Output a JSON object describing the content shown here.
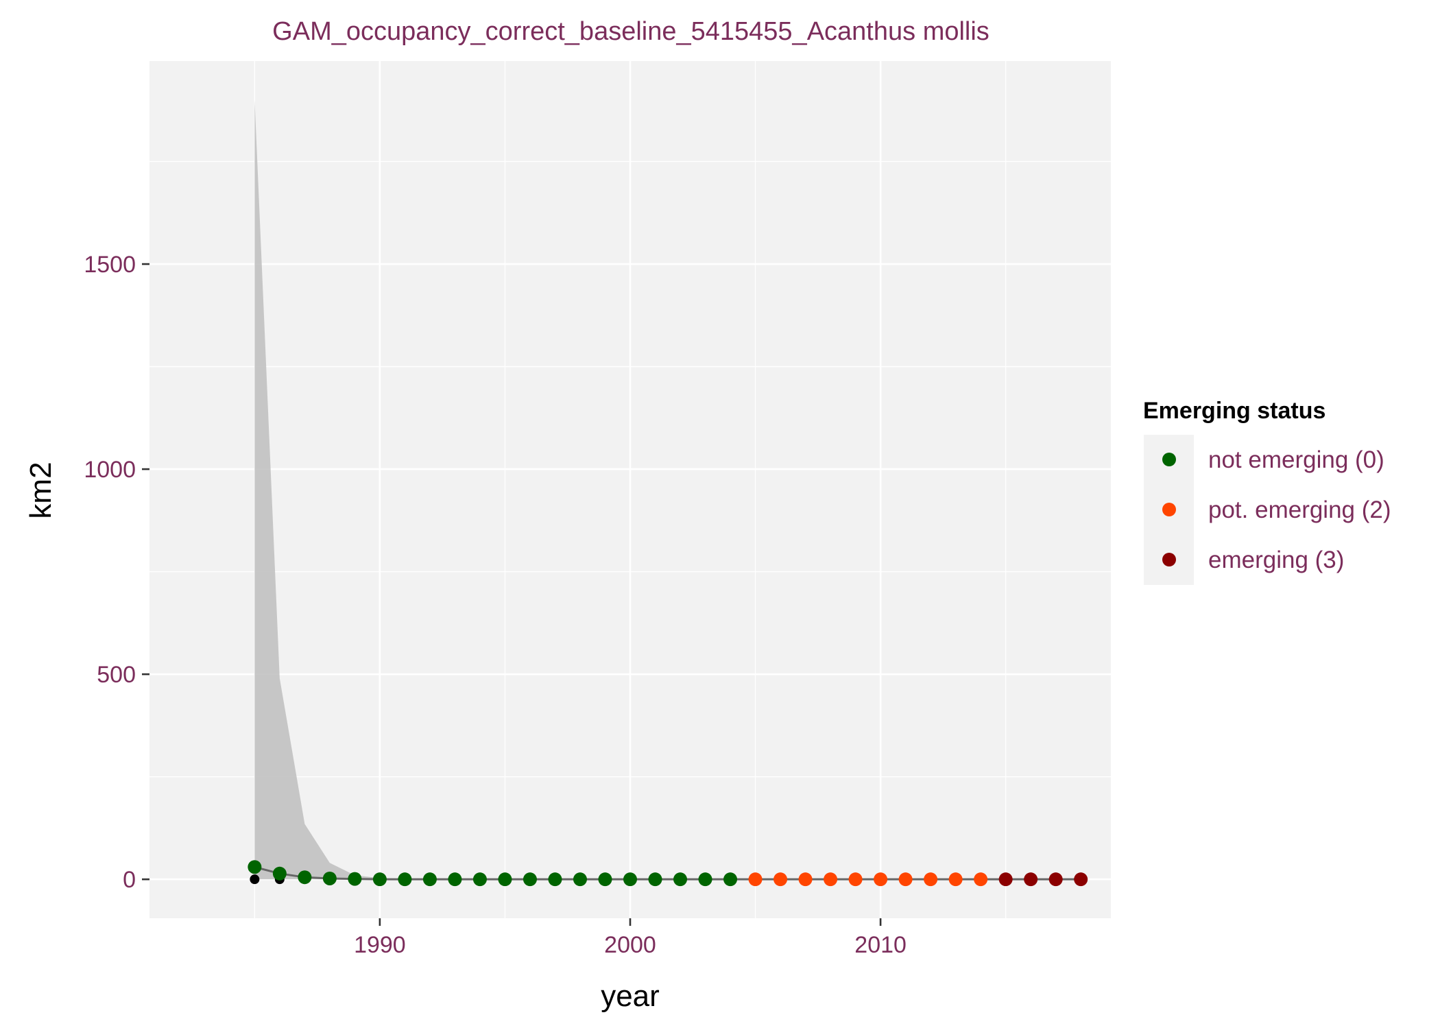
{
  "chart_data": {
    "type": "scatter",
    "title": "GAM_occupancy_correct_baseline_5415455_Acanthus mollis",
    "xlabel": "year",
    "ylabel": "km2",
    "xlim": [
      1980.8,
      2019.2
    ],
    "ylim": [
      -95,
      1995
    ],
    "x_ticks": [
      1990,
      2000,
      2010
    ],
    "x_minor": [
      1985,
      1995,
      2005,
      2015
    ],
    "y_ticks": [
      0,
      500,
      1000,
      1500
    ],
    "y_minor": [
      250,
      750,
      1250,
      1750
    ],
    "grid": true,
    "legend_position": "right",
    "legend": {
      "title": "Emerging status",
      "entries": [
        {
          "label": "not emerging (0)",
          "color": "#006400"
        },
        {
          "label": "pot. emerging (2)",
          "color": "#FF4500"
        },
        {
          "label": "emerging (3)",
          "color": "#8B0000"
        }
      ]
    },
    "observed": [
      {
        "year": 1985,
        "value": 0
      },
      {
        "year": 1986,
        "value": 0
      }
    ],
    "ribbon": {
      "x": [
        1985,
        1986,
        1987,
        1988,
        1989,
        1990,
        1991,
        1992,
        1993,
        1994,
        1995,
        1996,
        1997,
        1998,
        1999,
        2000,
        2001,
        2002,
        2003,
        2004,
        2005,
        2006,
        2007,
        2008,
        2009,
        2010,
        2011,
        2012,
        2013,
        2014,
        2015,
        2016,
        2017,
        2018
      ],
      "upper": [
        1900,
        490,
        135,
        40,
        10,
        3,
        1,
        0.5,
        0.3,
        0.2,
        0.1,
        0.1,
        0.1,
        0.1,
        0.1,
        0.1,
        0.1,
        0.1,
        0.1,
        0.1,
        0.1,
        0.1,
        0.1,
        0.1,
        0.1,
        0.1,
        0.1,
        0.1,
        0.1,
        0.1,
        0.1,
        0.1,
        0.1,
        0.1
      ],
      "lower": [
        0,
        0,
        0,
        0,
        0,
        0,
        0,
        0,
        0,
        0,
        0,
        0,
        0,
        0,
        0,
        0,
        0,
        0,
        0,
        0,
        0,
        0,
        0,
        0,
        0,
        0,
        0,
        0,
        0,
        0,
        0,
        0,
        0,
        0
      ]
    },
    "series": [
      {
        "name": "not emerging (0)",
        "color": "#006400",
        "x": [
          1985,
          1986,
          1987,
          1988,
          1989,
          1990,
          1991,
          1992,
          1993,
          1994,
          1995,
          1996,
          1997,
          1998,
          1999,
          2000,
          2001,
          2002,
          2003,
          2004
        ],
        "y": [
          30,
          14,
          5,
          2,
          1,
          0,
          0,
          0,
          0,
          0,
          0,
          0,
          0,
          0,
          0,
          0,
          0,
          0,
          0,
          0
        ]
      },
      {
        "name": "pot. emerging (2)",
        "color": "#FF4500",
        "x": [
          2005,
          2006,
          2007,
          2008,
          2009,
          2010,
          2011,
          2012,
          2013,
          2014
        ],
        "y": [
          0,
          0,
          0,
          0,
          0,
          0,
          0,
          0,
          0,
          0
        ]
      },
      {
        "name": "emerging (3)",
        "color": "#8B0000",
        "x": [
          2015,
          2016,
          2017,
          2018
        ],
        "y": [
          0,
          0,
          0,
          0
        ]
      }
    ]
  }
}
